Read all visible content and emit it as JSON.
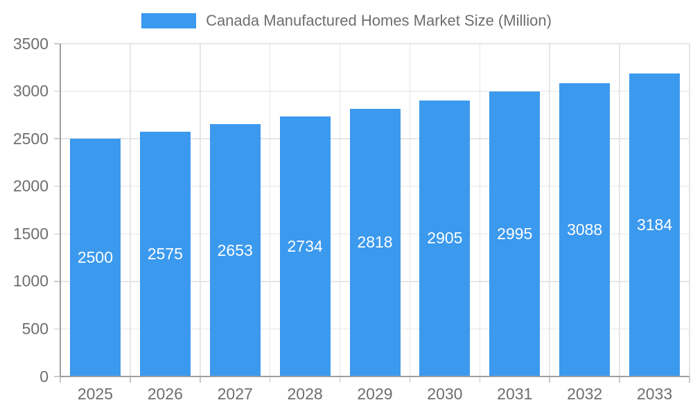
{
  "chart_data": {
    "type": "bar",
    "title": "Canada Manufactured Homes Market Size (Million)",
    "categories": [
      "2025",
      "2026",
      "2027",
      "2028",
      "2029",
      "2030",
      "2031",
      "2032",
      "2033"
    ],
    "values": [
      2500,
      2575,
      2653,
      2734,
      2818,
      2905,
      2995,
      3088,
      3184
    ],
    "series_name": "Canada Manufactured Homes Market Size (Million)",
    "xlabel": "",
    "ylabel": "",
    "ylim": [
      0,
      3500
    ],
    "yticks": [
      0,
      500,
      1000,
      1500,
      2000,
      2500,
      3000,
      3500
    ],
    "grid": true,
    "legend_position": "top-center",
    "bar_labels_inside": true,
    "colors": {
      "bar": "#3B99EE",
      "bar_label_text": "#FFFFFF",
      "axis_text": "#6E6E6E",
      "gridline": "#E6E6E6",
      "axis_line": "#9E9E9E",
      "tick": "#C9C9C9",
      "background": "#FFFFFF"
    }
  }
}
